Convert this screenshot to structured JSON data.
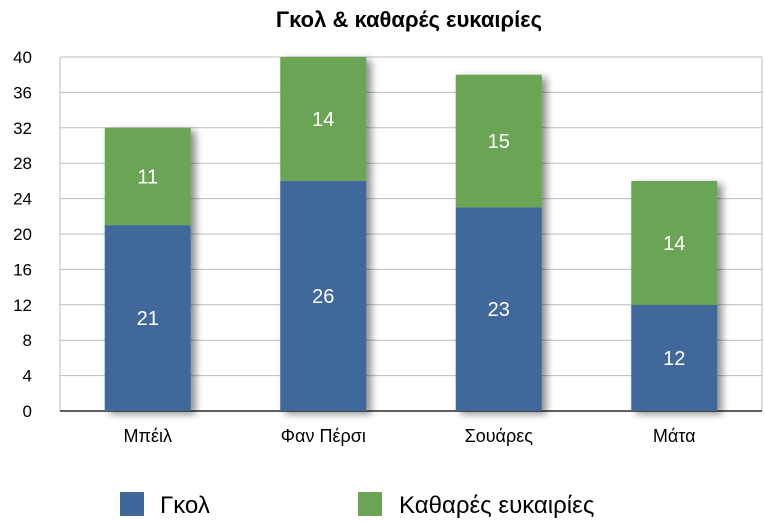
{
  "chart_data": {
    "type": "bar",
    "stacked": true,
    "title": "Γκολ & καθαρές ευκαιρίες",
    "categories": [
      "Μπέιλ",
      "Φαν Πέρσι",
      "Σουάρες",
      "Μάτα"
    ],
    "series": [
      {
        "name": "Γκολ",
        "values": [
          21,
          26,
          23,
          12
        ],
        "color": "#3f679b"
      },
      {
        "name": "Καθαρές ευκαιρίες",
        "values": [
          11,
          14,
          15,
          14
        ],
        "color": "#6aa454"
      }
    ],
    "ylim": [
      0,
      40
    ],
    "yticks": [
      0,
      4,
      8,
      12,
      16,
      20,
      24,
      28,
      32,
      36,
      40
    ],
    "grid": true,
    "legend_position": "bottom",
    "xlabel": "",
    "ylabel": ""
  }
}
